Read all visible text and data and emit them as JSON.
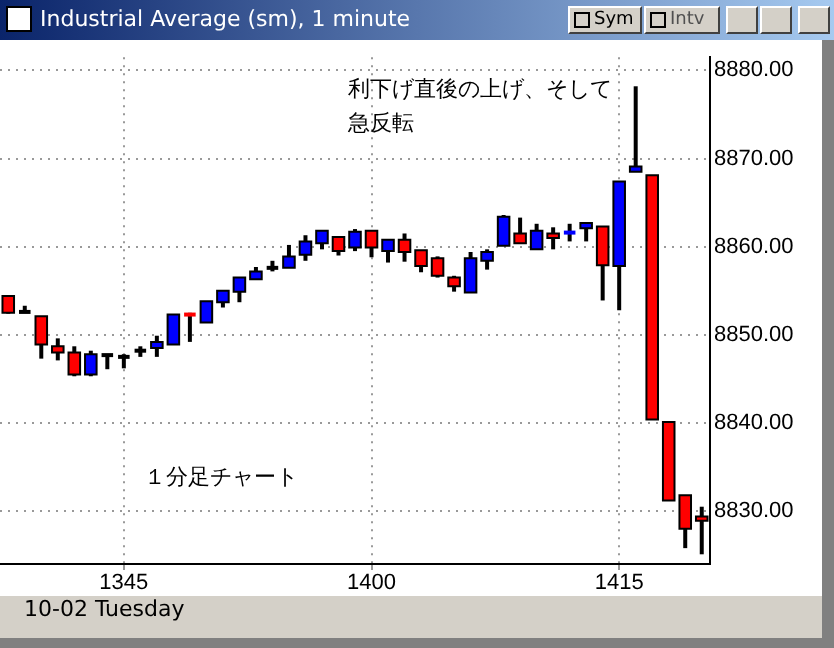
{
  "chart_data": {
    "type": "candlestick",
    "title": "Industrial Average (sm), 1 minute",
    "categories": [
      null,
      null,
      null,
      null,
      null,
      null,
      null,
      "1345",
      null,
      null,
      null,
      null,
      null,
      null,
      null,
      null,
      null,
      null,
      null,
      null,
      null,
      null,
      "1400",
      null,
      null,
      null,
      null,
      null,
      null,
      null,
      null,
      null,
      null,
      null,
      null,
      null,
      null,
      "1415",
      null,
      null,
      null,
      null,
      null
    ],
    "ohlc": [
      [
        8854.4,
        8854.5,
        8852.4,
        8852.5
      ],
      [
        8852.6,
        8853.3,
        8852.5,
        8852.6
      ],
      [
        8852.1,
        8852.1,
        8847.3,
        8848.9
      ],
      [
        8848.7,
        8849.6,
        8847.1,
        8848.0
      ],
      [
        8848.0,
        8848.7,
        8845.3,
        8845.5
      ],
      [
        8845.5,
        8848.2,
        8845.3,
        8847.8
      ],
      [
        8847.7,
        8847.7,
        8846.1,
        8847.7
      ],
      [
        8847.5,
        8847.8,
        8846.2,
        8847.5
      ],
      [
        8848.2,
        8848.7,
        8847.5,
        8848.2
      ],
      [
        8848.5,
        8849.9,
        8847.5,
        8849.2
      ],
      [
        8848.9,
        8852.3,
        8848.9,
        8852.3
      ],
      [
        8852.5,
        8852.5,
        8849.2,
        8852.1
      ],
      [
        8851.4,
        8853.8,
        8851.4,
        8853.8
      ],
      [
        8853.7,
        8855.0,
        8853.1,
        8855.0
      ],
      [
        8854.9,
        8856.5,
        8853.7,
        8856.5
      ],
      [
        8856.3,
        8857.7,
        8856.3,
        8857.2
      ],
      [
        8857.6,
        8858.4,
        8857.2,
        8857.6
      ],
      [
        8857.6,
        8860.2,
        8857.6,
        8858.9
      ],
      [
        8859.1,
        8861.3,
        8858.4,
        8860.6
      ],
      [
        8860.4,
        8861.8,
        8859.7,
        8861.8
      ],
      [
        8861.1,
        8861.1,
        8859.0,
        8859.5
      ],
      [
        8859.9,
        8862.0,
        8859.5,
        8861.7
      ],
      [
        8861.8,
        8861.8,
        8858.8,
        8859.9
      ],
      [
        8859.5,
        8860.8,
        8858.2,
        8860.8
      ],
      [
        8860.8,
        8861.5,
        8858.3,
        8859.4
      ],
      [
        8859.6,
        8859.6,
        8857.1,
        8857.8
      ],
      [
        8858.7,
        8858.9,
        8856.5,
        8856.7
      ],
      [
        8856.5,
        8856.7,
        8854.9,
        8855.5
      ],
      [
        8854.8,
        8859.4,
        8854.8,
        8858.7
      ],
      [
        8858.4,
        8859.7,
        8857.4,
        8859.4
      ],
      [
        8860.1,
        8863.6,
        8860.1,
        8863.4
      ],
      [
        8861.5,
        8863.3,
        8860.4,
        8860.4
      ],
      [
        8859.7,
        8862.6,
        8859.7,
        8861.8
      ],
      [
        8861.5,
        8862.2,
        8859.7,
        8861.0
      ],
      [
        8861.4,
        8862.6,
        8860.6,
        8861.8
      ],
      [
        8862.1,
        8862.7,
        8860.6,
        8862.7
      ],
      [
        8862.3,
        8862.3,
        8853.9,
        8857.9
      ],
      [
        8857.8,
        8867.4,
        8852.8,
        8867.4
      ],
      [
        8868.5,
        8878.2,
        8868.5,
        8869.1
      ],
      [
        8868.1,
        8868.1,
        8840.4,
        8840.4
      ],
      [
        8840.1,
        8840.1,
        8831.2,
        8831.2
      ],
      [
        8831.8,
        8831.8,
        8825.8,
        8828.0
      ],
      [
        8829.4,
        8830.5,
        8825.1,
        8828.9
      ]
    ],
    "colors": [
      "#ff0000",
      "#000000",
      "#ff0000",
      "#ff0000",
      "#ff0000",
      "#0000ff",
      "#000000",
      "#000000",
      "#000000",
      "#0000ff",
      "#0000ff",
      "#ff0000",
      "#0000ff",
      "#0000ff",
      "#0000ff",
      "#0000ff",
      "#000000",
      "#0000ff",
      "#0000ff",
      "#0000ff",
      "#ff0000",
      "#0000ff",
      "#ff0000",
      "#0000ff",
      "#ff0000",
      "#ff0000",
      "#ff0000",
      "#ff0000",
      "#0000ff",
      "#0000ff",
      "#0000ff",
      "#ff0000",
      "#0000ff",
      "#ff0000",
      "#0000ff",
      "#0000ff",
      "#ff0000",
      "#0000ff",
      "#0000ff",
      "#ff0000",
      "#ff0000",
      "#ff0000",
      "#ff0000"
    ],
    "ylim": [
      8824,
      8881.5
    ],
    "yticks": [
      {
        "value": 8830,
        "label": "8830.00"
      },
      {
        "value": 8840,
        "label": "8840.00"
      },
      {
        "value": 8850,
        "label": "8850.00"
      },
      {
        "value": 8860,
        "label": "8860.00"
      },
      {
        "value": 8870,
        "label": "8870.00"
      },
      {
        "value": 8880,
        "label": "8880.00"
      }
    ],
    "grid": true,
    "line_style": "dotted",
    "legend": false,
    "annotations": [
      "利下げ直後の上げ、そして急反転",
      "１分足チャート",
      "10-02 Tuesday",
      "Sym",
      "Intv"
    ]
  }
}
